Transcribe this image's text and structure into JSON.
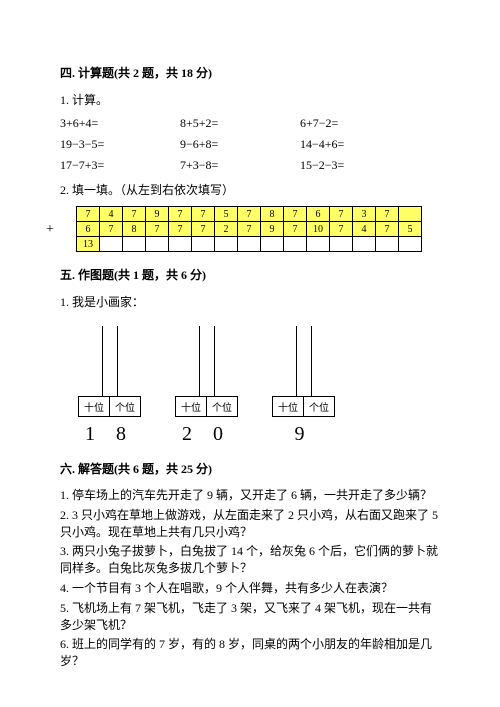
{
  "section4": {
    "title": "四. 计算题(共 2 题，共 18 分)",
    "q1": "1. 计算。",
    "rows": [
      [
        "3+6+4=",
        "8+5+2=",
        "6+7−2="
      ],
      [
        "19−3−5=",
        "9−6+8=",
        "14−4+6="
      ],
      [
        "17−7+3=",
        "7+3−8=",
        "15−2−3="
      ]
    ],
    "q2": "2. 填一填。（从左到右依次填写）",
    "table": {
      "row1": [
        "7",
        "4",
        "7",
        "9",
        "7",
        "7",
        "5",
        "7",
        "8",
        "7",
        "6",
        "7",
        "3",
        "7"
      ],
      "row2": [
        "6",
        "7",
        "8",
        "7",
        "7",
        "7",
        "2",
        "7",
        "9",
        "7",
        "10",
        "7",
        "4",
        "7",
        "5"
      ],
      "row3first": "13"
    }
  },
  "section5": {
    "title": "五. 作图题(共 1 题，共 6 分)",
    "q1": "1. 我是小画家：",
    "tens": "十位",
    "ones": "个位",
    "numbers": [
      "1 8",
      "2 0",
      "9"
    ]
  },
  "section6": {
    "title": "六. 解答题(共 6 题，共 25 分)",
    "items": [
      "1. 停车场上的汽车先开走了 9 辆，又开走了 6 辆，一共开走了多少辆？",
      "2. 3 只小鸡在草地上做游戏，从左面走来了 2 只小鸡，从右面又跑来了 5 只小鸡。现在草地上共有几只小鸡？",
      "3. 两只小兔子拔萝卜，白兔拔了 14 个，给灰兔 6 个后，它们俩的萝卜就同样多。白兔比灰兔多拔几个萝卜？",
      "4. 一个节目有 3 个人在唱歌，9 个人伴舞，共有多少人在表演？",
      "5. 飞机场上有 7 架飞机，飞走了 3 架，又飞来了 4 架飞机，现在一共有多少架飞机？",
      "6. 班上的同学有的 7 岁，有的 8 岁，同桌的两个小朋友的年龄相加是几岁？"
    ]
  }
}
